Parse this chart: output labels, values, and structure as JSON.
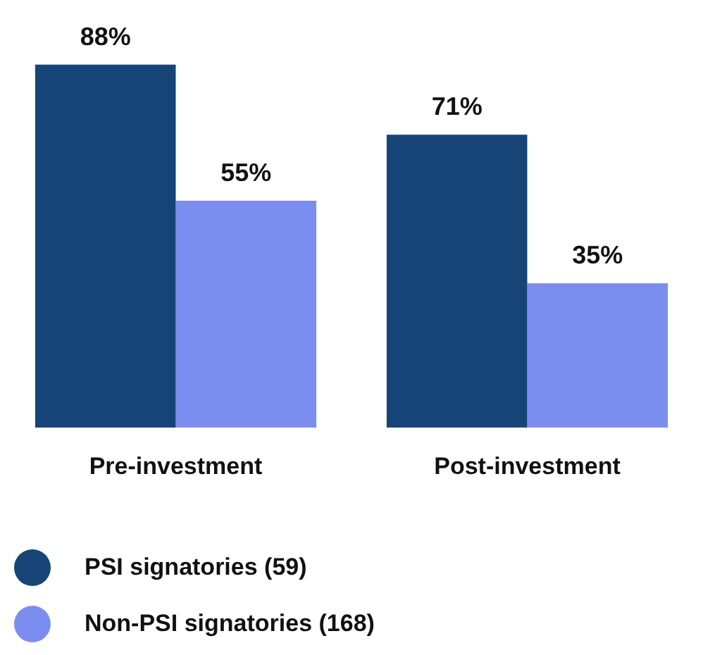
{
  "chart_data": {
    "type": "bar",
    "categories": [
      "Pre-investment",
      "Post-investment"
    ],
    "series": [
      {
        "name": "PSI signatories (59)",
        "color": "#164477",
        "values": [
          88,
          71
        ],
        "value_labels": [
          "88%",
          "71%"
        ]
      },
      {
        "name": "Non-PSI signatories (168)",
        "color": "#7b8ef0",
        "values": [
          55,
          35
        ],
        "value_labels": [
          "55%",
          "35%"
        ]
      }
    ],
    "grid": false,
    "legend": "bottom left",
    "tick_labels": "x"
  }
}
